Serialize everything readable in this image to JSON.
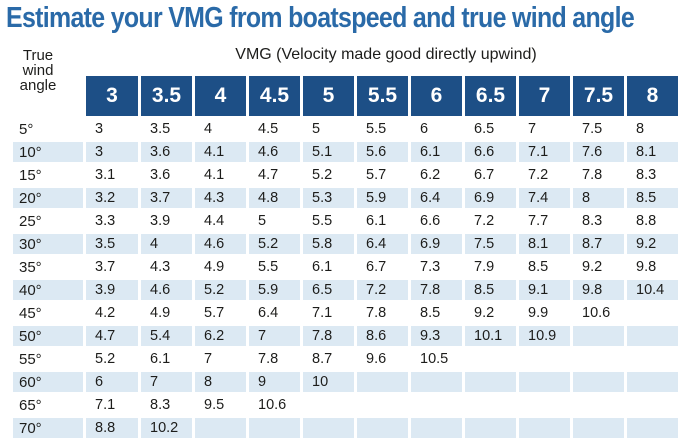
{
  "title": "Estimate your VMG from boatspeed and true wind angle",
  "angle_label": [
    "True",
    "wind",
    "angle"
  ],
  "vmg_label": "VMG (Velocity made good directly upwind)",
  "speeds": [
    "3",
    "3.5",
    "4",
    "4.5",
    "5",
    "5.5",
    "6",
    "6.5",
    "7",
    "7.5",
    "8"
  ],
  "rows": [
    {
      "angle": "5°",
      "values": [
        "3",
        "3.5",
        "4",
        "4.5",
        "5",
        "5.5",
        "6",
        "6.5",
        "7",
        "7.5",
        "8"
      ]
    },
    {
      "angle": "10°",
      "values": [
        "3",
        "3.6",
        "4.1",
        "4.6",
        "5.1",
        "5.6",
        "6.1",
        "6.6",
        "7.1",
        "7.6",
        "8.1"
      ]
    },
    {
      "angle": "15°",
      "values": [
        "3.1",
        "3.6",
        "4.1",
        "4.7",
        "5.2",
        "5.7",
        "6.2",
        "6.7",
        "7.2",
        "7.8",
        "8.3"
      ]
    },
    {
      "angle": "20°",
      "values": [
        "3.2",
        "3.7",
        "4.3",
        "4.8",
        "5.3",
        "5.9",
        "6.4",
        "6.9",
        "7.4",
        "8",
        "8.5"
      ]
    },
    {
      "angle": "25°",
      "values": [
        "3.3",
        "3.9",
        "4.4",
        "5",
        "5.5",
        "6.1",
        "6.6",
        "7.2",
        "7.7",
        "8.3",
        "8.8"
      ]
    },
    {
      "angle": "30°",
      "values": [
        "3.5",
        "4",
        "4.6",
        "5.2",
        "5.8",
        "6.4",
        "6.9",
        "7.5",
        "8.1",
        "8.7",
        "9.2"
      ]
    },
    {
      "angle": "35°",
      "values": [
        "3.7",
        "4.3",
        "4.9",
        "5.5",
        "6.1",
        "6.7",
        "7.3",
        "7.9",
        "8.5",
        "9.2",
        "9.8"
      ]
    },
    {
      "angle": "40°",
      "values": [
        "3.9",
        "4.6",
        "5.2",
        "5.9",
        "6.5",
        "7.2",
        "7.8",
        "8.5",
        "9.1",
        "9.8",
        "10.4"
      ]
    },
    {
      "angle": "45°",
      "values": [
        "4.2",
        "4.9",
        "5.7",
        "6.4",
        "7.1",
        "7.8",
        "8.5",
        "9.2",
        "9.9",
        "10.6",
        ""
      ]
    },
    {
      "angle": "50°",
      "values": [
        "4.7",
        "5.4",
        "6.2",
        "7",
        "7.8",
        "8.6",
        "9.3",
        "10.1",
        "10.9",
        "",
        ""
      ]
    },
    {
      "angle": "55°",
      "values": [
        "5.2",
        "6.1",
        "7",
        "7.8",
        "8.7",
        "9.6",
        "10.5",
        "",
        "",
        "",
        ""
      ]
    },
    {
      "angle": "60°",
      "values": [
        "6",
        "7",
        "8",
        "9",
        "10",
        "",
        "",
        "",
        "",
        "",
        ""
      ]
    },
    {
      "angle": "65°",
      "values": [
        "7.1",
        "8.3",
        "9.5",
        "10.6",
        "",
        "",
        "",
        "",
        "",
        "",
        ""
      ]
    },
    {
      "angle": "70°",
      "values": [
        "8.8",
        "10.2",
        "",
        "",
        "",
        "",
        "",
        "",
        "",
        "",
        ""
      ]
    }
  ],
  "colors": {
    "title": "#2a6aa8",
    "header_bg": "#1d4f86",
    "shade": "#dce9f3"
  }
}
